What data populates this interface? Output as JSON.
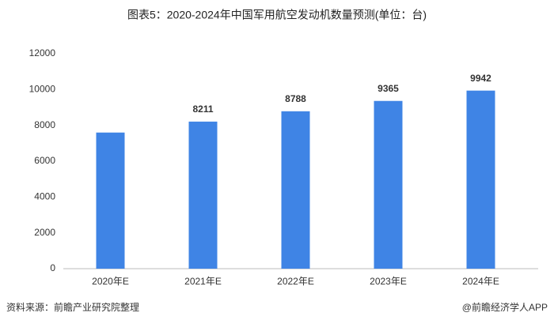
{
  "chart_data": {
    "type": "bar",
    "title": "图表5：2020-2024年中国军用航空发动机数量预测(单位：台)",
    "categories": [
      "2020年E",
      "2021年E",
      "2022年E",
      "2023年E",
      "2024年E"
    ],
    "values": [
      7600,
      8211,
      8788,
      9365,
      9942
    ],
    "value_labels": [
      null,
      "8211",
      "8788",
      "9365",
      "9942"
    ],
    "color": "#3f84e5",
    "ylim": [
      0,
      12000
    ],
    "yticks": [
      0,
      2000,
      4000,
      6000,
      8000,
      10000,
      12000
    ],
    "grid": false,
    "source": "资料来源：前瞻产业研究院整理",
    "credit": "@前瞻经济学人APP"
  }
}
